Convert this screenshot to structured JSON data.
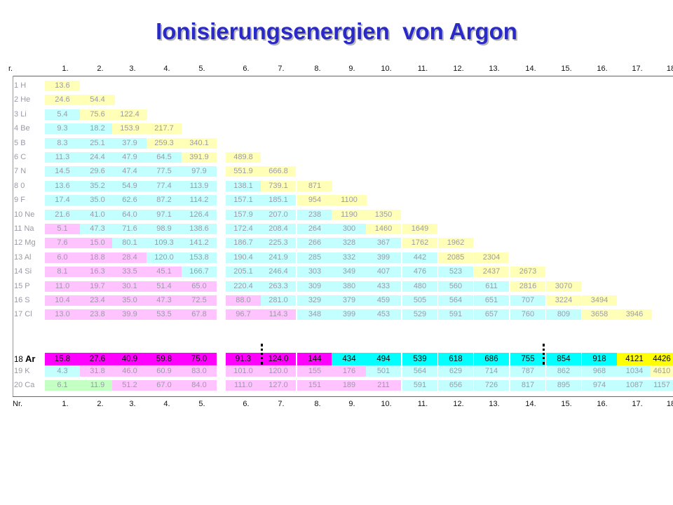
{
  "title": "Ionisierungsenergien  von Argon",
  "header_top": [
    "r.",
    "1.",
    "2.",
    "3.",
    "4.",
    "5.",
    "6.",
    "7.",
    "8.",
    "9.",
    "10.",
    "11.",
    "12.",
    "13.",
    "14.",
    "15.",
    "16.",
    "17.",
    "18"
  ],
  "header_bottom": [
    "Nr.",
    "1.",
    "2.",
    "3.",
    "4.",
    "5.",
    "6.",
    "7.",
    "8.",
    "9.",
    "10.",
    "11.",
    "12.",
    "13.",
    "14.",
    "15.",
    "16.",
    "17.",
    "18"
  ],
  "colors": {
    "yellow": "#ffffb8",
    "cyan": "#c4ffff",
    "pink": "#ffc4ff",
    "green": "#c4ffc4",
    "ar_magenta": "#ff00ff",
    "ar_cyan": "#00ffff",
    "ar_yellow": "#ffff00",
    "title": "#2a2ac8"
  },
  "rows": [
    {
      "num": "1",
      "sym": "H",
      "cells": [
        [
          "13.6",
          "y"
        ]
      ]
    },
    {
      "num": "2",
      "sym": "He",
      "cells": [
        [
          "24.6",
          "y"
        ],
        [
          "54.4",
          "y"
        ]
      ]
    },
    {
      "num": "3",
      "sym": "Li",
      "cells": [
        [
          "5.4",
          "c"
        ],
        [
          "75.6",
          "y"
        ],
        [
          "122.4",
          "y"
        ]
      ]
    },
    {
      "num": "4",
      "sym": "Be",
      "cells": [
        [
          "9.3",
          "c"
        ],
        [
          "18.2",
          "c"
        ],
        [
          "153.9",
          "y"
        ],
        [
          "217.7",
          "y"
        ]
      ]
    },
    {
      "num": "5",
      "sym": "B",
      "cells": [
        [
          "8.3",
          "c"
        ],
        [
          "25.1",
          "c"
        ],
        [
          "37.9",
          "c"
        ],
        [
          "259.3",
          "y"
        ],
        [
          "340.1",
          "y"
        ]
      ]
    },
    {
      "num": "6",
      "sym": "C",
      "cells": [
        [
          "11.3",
          "c"
        ],
        [
          "24.4",
          "c"
        ],
        [
          "47.9",
          "c"
        ],
        [
          "64.5",
          "c"
        ],
        [
          "391.9",
          "y"
        ],
        [
          "489.8",
          "y"
        ]
      ]
    },
    {
      "num": "7",
      "sym": "N",
      "cells": [
        [
          "14.5",
          "c"
        ],
        [
          "29.6",
          "c"
        ],
        [
          "47.4",
          "c"
        ],
        [
          "77.5",
          "c"
        ],
        [
          "97.9",
          "c"
        ],
        [
          "551.9",
          "y"
        ],
        [
          "666.8",
          "y"
        ]
      ]
    },
    {
      "num": "8",
      "sym": "0",
      "cells": [
        [
          "13.6",
          "c"
        ],
        [
          "35.2",
          "c"
        ],
        [
          "54.9",
          "c"
        ],
        [
          "77.4",
          "c"
        ],
        [
          "113.9",
          "c"
        ],
        [
          "138.1",
          "c"
        ],
        [
          "739.1",
          "y"
        ],
        [
          "871",
          "y"
        ]
      ]
    },
    {
      "num": "9",
      "sym": "F",
      "cells": [
        [
          "17.4",
          "c"
        ],
        [
          "35.0",
          "c"
        ],
        [
          "62.6",
          "c"
        ],
        [
          "87.2",
          "c"
        ],
        [
          "114.2",
          "c"
        ],
        [
          "157.1",
          "c"
        ],
        [
          "185.1",
          "c"
        ],
        [
          "954",
          "y"
        ],
        [
          "1100",
          "y"
        ]
      ]
    },
    {
      "num": "10",
      "sym": "Ne",
      "cells": [
        [
          "21.6",
          "c"
        ],
        [
          "41.0",
          "c"
        ],
        [
          "64.0",
          "c"
        ],
        [
          "97.1",
          "c"
        ],
        [
          "126.4",
          "c"
        ],
        [
          "157.9",
          "c"
        ],
        [
          "207.0",
          "c"
        ],
        [
          "238",
          "c"
        ],
        [
          "1190",
          "y"
        ],
        [
          "1350",
          "y"
        ]
      ]
    },
    {
      "num": "11",
      "sym": "Na",
      "cells": [
        [
          "5.1",
          "p"
        ],
        [
          "47.3",
          "c"
        ],
        [
          "71.6",
          "c"
        ],
        [
          "98.9",
          "c"
        ],
        [
          "138.6",
          "c"
        ],
        [
          "172.4",
          "c"
        ],
        [
          "208.4",
          "c"
        ],
        [
          "264",
          "c"
        ],
        [
          "300",
          "c"
        ],
        [
          "1460",
          "y"
        ],
        [
          "1649",
          "y"
        ]
      ]
    },
    {
      "num": "12",
      "sym": "Mg",
      "cells": [
        [
          "7.6",
          "p"
        ],
        [
          "15.0",
          "p"
        ],
        [
          "80.1",
          "c"
        ],
        [
          "109.3",
          "c"
        ],
        [
          "141.2",
          "c"
        ],
        [
          "186.7",
          "c"
        ],
        [
          "225.3",
          "c"
        ],
        [
          "266",
          "c"
        ],
        [
          "328",
          "c"
        ],
        [
          "367",
          "c"
        ],
        [
          "1762",
          "y"
        ],
        [
          "1962",
          "y"
        ]
      ]
    },
    {
      "num": "13",
      "sym": "Al",
      "cells": [
        [
          "6.0",
          "p"
        ],
        [
          "18.8",
          "p"
        ],
        [
          "28.4",
          "p"
        ],
        [
          "120.0",
          "c"
        ],
        [
          "153.8",
          "c"
        ],
        [
          "190.4",
          "c"
        ],
        [
          "241.9",
          "c"
        ],
        [
          "285",
          "c"
        ],
        [
          "332",
          "c"
        ],
        [
          "399",
          "c"
        ],
        [
          "442",
          "c"
        ],
        [
          "2085",
          "y"
        ],
        [
          "2304",
          "y"
        ]
      ]
    },
    {
      "num": "14",
      "sym": "Si",
      "cells": [
        [
          "8.1",
          "p"
        ],
        [
          "16.3",
          "p"
        ],
        [
          "33.5",
          "p"
        ],
        [
          "45.1",
          "p"
        ],
        [
          "166.7",
          "c"
        ],
        [
          "205.1",
          "c"
        ],
        [
          "246.4",
          "c"
        ],
        [
          "303",
          "c"
        ],
        [
          "349",
          "c"
        ],
        [
          "407",
          "c"
        ],
        [
          "476",
          "c"
        ],
        [
          "523",
          "c"
        ],
        [
          "2437",
          "y"
        ],
        [
          "2673",
          "y"
        ]
      ]
    },
    {
      "num": "15",
      "sym": "P",
      "cells": [
        [
          "11.0",
          "p"
        ],
        [
          "19.7",
          "p"
        ],
        [
          "30.1",
          "p"
        ],
        [
          "51.4",
          "p"
        ],
        [
          "65.0",
          "p"
        ],
        [
          "220.4",
          "c"
        ],
        [
          "263.3",
          "c"
        ],
        [
          "309",
          "c"
        ],
        [
          "380",
          "c"
        ],
        [
          "433",
          "c"
        ],
        [
          "480",
          "c"
        ],
        [
          "560",
          "c"
        ],
        [
          "611",
          "c"
        ],
        [
          "2816",
          "y"
        ],
        [
          "3070",
          "y"
        ]
      ]
    },
    {
      "num": "16",
      "sym": "S",
      "cells": [
        [
          "10.4",
          "p"
        ],
        [
          "23.4",
          "p"
        ],
        [
          "35.0",
          "p"
        ],
        [
          "47.3",
          "p"
        ],
        [
          "72.5",
          "p"
        ],
        [
          "88.0",
          "p"
        ],
        [
          "281.0",
          "c"
        ],
        [
          "329",
          "c"
        ],
        [
          "379",
          "c"
        ],
        [
          "459",
          "c"
        ],
        [
          "505",
          "c"
        ],
        [
          "564",
          "c"
        ],
        [
          "651",
          "c"
        ],
        [
          "707",
          "c"
        ],
        [
          "3224",
          "y"
        ],
        [
          "3494",
          "y"
        ]
      ]
    },
    {
      "num": "17",
      "sym": "Cl",
      "cells": [
        [
          "13.0",
          "p"
        ],
        [
          "23.8",
          "p"
        ],
        [
          "39.9",
          "p"
        ],
        [
          "53.5",
          "p"
        ],
        [
          "67.8",
          "p"
        ],
        [
          "96.7",
          "p"
        ],
        [
          "114.3",
          "p"
        ],
        [
          "348",
          "c"
        ],
        [
          "399",
          "c"
        ],
        [
          "453",
          "c"
        ],
        [
          "529",
          "c"
        ],
        [
          "591",
          "c"
        ],
        [
          "657",
          "c"
        ],
        [
          "760",
          "c"
        ],
        [
          "809",
          "c"
        ],
        [
          "3658",
          "y"
        ],
        [
          "3946",
          "y"
        ]
      ]
    },
    {
      "num": "18",
      "sym": "Ar",
      "ar": true,
      "cells": [
        [
          "15.8",
          "m"
        ],
        [
          "27.6",
          "m"
        ],
        [
          "40.9",
          "m"
        ],
        [
          "59.8",
          "m"
        ],
        [
          "75.0",
          "m"
        ],
        [
          "91.3",
          "m"
        ],
        [
          "124.0",
          "m"
        ],
        [
          "144",
          "m"
        ],
        [
          "434",
          "a"
        ],
        [
          "494",
          "a"
        ],
        [
          "539",
          "a"
        ],
        [
          "618",
          "a"
        ],
        [
          "686",
          "a"
        ],
        [
          "755",
          "a"
        ],
        [
          "854",
          "a"
        ],
        [
          "918",
          "a"
        ],
        [
          "4121",
          "Y"
        ],
        [
          "4426",
          "Y"
        ]
      ]
    },
    {
      "num": "19",
      "sym": "K",
      "cells": [
        [
          "4.3",
          "c"
        ],
        [
          "31.8",
          "p"
        ],
        [
          "46.0",
          "p"
        ],
        [
          "60.9",
          "p"
        ],
        [
          "83.0",
          "p"
        ],
        [
          "101.0",
          "p"
        ],
        [
          "120.0",
          "p"
        ],
        [
          "155",
          "p"
        ],
        [
          "176",
          "p"
        ],
        [
          "501",
          "c"
        ],
        [
          "564",
          "c"
        ],
        [
          "629",
          "c"
        ],
        [
          "714",
          "c"
        ],
        [
          "787",
          "c"
        ],
        [
          "862",
          "c"
        ],
        [
          "968",
          "c"
        ],
        [
          "1034",
          "c"
        ],
        [
          "4610",
          "y"
        ]
      ]
    },
    {
      "num": "20",
      "sym": "Ca",
      "cells": [
        [
          "6.1",
          "g"
        ],
        [
          "11.9",
          "g"
        ],
        [
          "51.2",
          "p"
        ],
        [
          "67.0",
          "p"
        ],
        [
          "84.0",
          "p"
        ],
        [
          "111.0",
          "p"
        ],
        [
          "127.0",
          "p"
        ],
        [
          "151",
          "p"
        ],
        [
          "189",
          "p"
        ],
        [
          "211",
          "p"
        ],
        [
          "591",
          "c"
        ],
        [
          "656",
          "c"
        ],
        [
          "726",
          "c"
        ],
        [
          "817",
          "c"
        ],
        [
          "895",
          "c"
        ],
        [
          "974",
          "c"
        ],
        [
          "1087",
          "c"
        ],
        [
          "1157",
          "c"
        ]
      ]
    }
  ]
}
